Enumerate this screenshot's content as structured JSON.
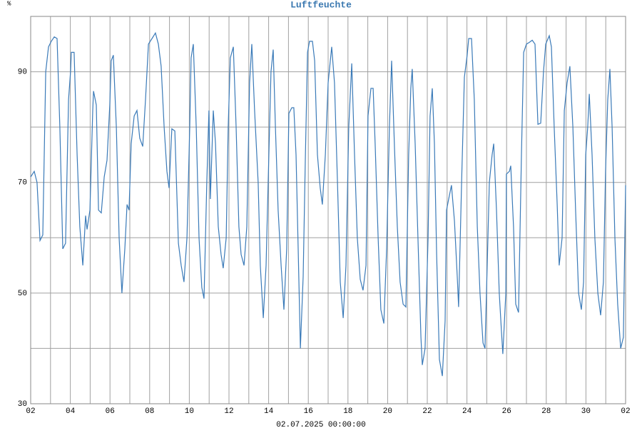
{
  "chart_data": {
    "type": "line",
    "title": "Luftfeuchte",
    "y_unit": "%",
    "x_label": "02.07.2025 00:00:00",
    "xlim": [
      0,
      30
    ],
    "xticks": [
      {
        "value": 0,
        "label": "02"
      },
      {
        "value": 2,
        "label": "04"
      },
      {
        "value": 4,
        "label": "06"
      },
      {
        "value": 6,
        "label": "08"
      },
      {
        "value": 8,
        "label": "10"
      },
      {
        "value": 10,
        "label": "12"
      },
      {
        "value": 12,
        "label": "14"
      },
      {
        "value": 14,
        "label": "16"
      },
      {
        "value": 16,
        "label": "18"
      },
      {
        "value": 18,
        "label": "20"
      },
      {
        "value": 20,
        "label": "22"
      },
      {
        "value": 22,
        "label": "24"
      },
      {
        "value": 24,
        "label": "26"
      },
      {
        "value": 26,
        "label": "28"
      },
      {
        "value": 28,
        "label": "30"
      },
      {
        "value": 30,
        "label": "02"
      }
    ],
    "xminor": [
      1,
      3,
      5,
      7,
      9,
      11,
      13,
      15,
      17,
      19,
      21,
      23,
      25,
      27,
      29
    ],
    "ylim": [
      30,
      100
    ],
    "yticks": [
      30,
      50,
      70,
      90
    ],
    "yminor": [
      40,
      60,
      80,
      100
    ],
    "grid": true,
    "series": [
      {
        "name": "Luftfeuchte",
        "color": "#3a7ab8",
        "x": [
          0,
          0.18,
          0.32,
          0.47,
          0.61,
          0.76,
          0.9,
          1.04,
          1.19,
          1.33,
          1.47,
          1.62,
          1.76,
          1.91,
          2.01,
          2.05,
          2.19,
          2.34,
          2.48,
          2.63,
          2.77,
          2.84,
          2.99,
          3.13,
          3.17,
          3.31,
          3.42,
          3.56,
          3.71,
          3.85,
          3.99,
          4.06,
          4.17,
          4.32,
          4.46,
          4.6,
          4.75,
          4.86,
          4.96,
          5.07,
          5.22,
          5.36,
          5.5,
          5.65,
          5.79,
          5.94,
          6.12,
          6.29,
          6.44,
          6.58,
          6.73,
          6.87,
          6.98,
          7.12,
          7.27,
          7.45,
          7.59,
          7.73,
          7.88,
          8.02,
          8.09,
          8.2,
          8.35,
          8.49,
          8.63,
          8.74,
          8.88,
          8.99,
          9.06,
          9.21,
          9.32,
          9.46,
          9.6,
          9.71,
          9.86,
          9.96,
          10.07,
          10.22,
          10.36,
          10.5,
          10.61,
          10.76,
          10.9,
          11.04,
          11.15,
          11.29,
          11.47,
          11.58,
          11.73,
          11.87,
          12.01,
          12.12,
          12.23,
          12.34,
          12.48,
          12.63,
          12.77,
          12.91,
          13.02,
          13.17,
          13.27,
          13.38,
          13.49,
          13.6,
          13.74,
          13.85,
          13.96,
          14.06,
          14.21,
          14.32,
          14.46,
          14.6,
          14.71,
          14.86,
          15.0,
          15.18,
          15.32,
          15.47,
          15.61,
          15.76,
          15.9,
          16.04,
          16.19,
          16.33,
          16.47,
          16.62,
          16.76,
          16.91,
          17.01,
          17.16,
          17.27,
          17.37,
          17.52,
          17.66,
          17.81,
          17.95,
          18.09,
          18.2,
          18.35,
          18.49,
          18.63,
          18.78,
          18.92,
          19.06,
          19.17,
          19.24,
          19.39,
          19.53,
          19.68,
          19.75,
          19.89,
          20.04,
          20.14,
          20.25,
          20.36,
          20.47,
          20.61,
          20.76,
          20.9,
          20.97,
          21.08,
          21.22,
          21.37,
          21.51,
          21.58,
          21.73,
          21.87,
          22.01,
          22.09,
          22.23,
          22.37,
          22.52,
          22.66,
          22.81,
          22.91,
          23.02,
          23.13,
          23.27,
          23.35,
          23.49,
          23.63,
          23.74,
          23.81,
          23.96,
          23.99,
          24.14,
          24.21,
          24.35,
          24.46,
          24.6,
          24.75,
          24.86,
          25.0,
          25.14,
          25.29,
          25.43,
          25.58,
          25.72,
          25.86,
          25.97,
          26.15,
          26.26,
          26.4,
          26.55,
          26.65,
          26.8,
          26.91,
          27.05,
          27.19,
          27.34,
          27.48,
          27.63,
          27.77,
          27.88,
          27.99,
          28.09,
          28.17,
          28.31,
          28.45,
          28.6,
          28.74,
          28.88,
          28.99,
          29.1,
          29.21,
          29.32,
          29.46,
          29.6,
          29.75,
          29.89,
          30.0
        ],
        "values": [
          71,
          72,
          70,
          59.5,
          60.5,
          90,
          94.5,
          95.5,
          96.3,
          96,
          80,
          58,
          59,
          85,
          90,
          93.5,
          93.5,
          75,
          62,
          55,
          64,
          61.5,
          65,
          83,
          86.5,
          84,
          65,
          64.5,
          71,
          74,
          84,
          92,
          93,
          80,
          60,
          50,
          58,
          66,
          65,
          77,
          82,
          83,
          78,
          76.5,
          85,
          95,
          96,
          97,
          95,
          91,
          80,
          72,
          69,
          79.7,
          79.3,
          59,
          55,
          52,
          60,
          80,
          92.5,
          95,
          80,
          60,
          51,
          49,
          70,
          83,
          67,
          83,
          77,
          62,
          57,
          54.5,
          60,
          80,
          92.5,
          94.5,
          80,
          62,
          57,
          55,
          62,
          88,
          95,
          83,
          70,
          55,
          45.5,
          55,
          75,
          90,
          94,
          80,
          65,
          55,
          47,
          58,
          82.5,
          83.5,
          83.5,
          75,
          58,
          40,
          53,
          74,
          93.5,
          95.5,
          95.5,
          92,
          75,
          69,
          66,
          75,
          88,
          94.5,
          88,
          70,
          52,
          45.5,
          55,
          80,
          91.5,
          75,
          60,
          52.5,
          50.5,
          55,
          82,
          87,
          87,
          77,
          60,
          47,
          44.5,
          58,
          80,
          92,
          76,
          62,
          52,
          48,
          47.5,
          75,
          87,
          90.5,
          77,
          60,
          42,
          37,
          40,
          60,
          82,
          87,
          77,
          57,
          38,
          35,
          45,
          65,
          67,
          69.5,
          63,
          53,
          47.5,
          70,
          89,
          93,
          96,
          96,
          85,
          62,
          50,
          41,
          40,
          55,
          70,
          75,
          77,
          65,
          50,
          43,
          39,
          50,
          71.5,
          72,
          73,
          62,
          48,
          46.5,
          75,
          93.5,
          95,
          95.3,
          95.7,
          95,
          80.5,
          80.7,
          90,
          95,
          96.5,
          94.5,
          80,
          66,
          55,
          60,
          83,
          88,
          91,
          80,
          65,
          50,
          47,
          52,
          75,
          80,
          86,
          75,
          60,
          50,
          46,
          52,
          72,
          85,
          90.5,
          80,
          60,
          48,
          40,
          42,
          69.5
        ]
      }
    ]
  }
}
